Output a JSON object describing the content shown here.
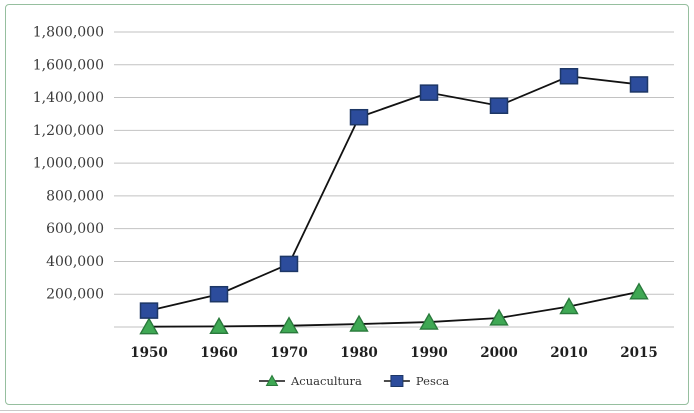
{
  "frame": {
    "border_color": "#96bf9f",
    "background": "#ffffff"
  },
  "text_color": {
    "y_labels": "#3a3a3a",
    "x_labels": "#1f1f1f",
    "legend": "#333333"
  },
  "chart_data": {
    "type": "line",
    "title": "",
    "xlabel": "",
    "ylabel": "",
    "categories": [
      "1950",
      "1960",
      "1970",
      "1980",
      "1990",
      "2000",
      "2010",
      "2015"
    ],
    "series": [
      {
        "name": "Acuacultura",
        "marker": "triangle",
        "fill": "#3fa854",
        "stroke": "#2a7a3c",
        "values": [
          2000,
          4000,
          8000,
          18000,
          30000,
          55000,
          125000,
          215000
        ]
      },
      {
        "name": "Pesca",
        "marker": "square",
        "fill": "#2c4c9c",
        "stroke": "#1d3766",
        "values": [
          100000,
          200000,
          385000,
          1280000,
          1430000,
          1350000,
          1530000,
          1480000
        ]
      }
    ],
    "ylim": [
      0,
      1800000
    ],
    "ytick_step": 200000,
    "y_tick_labels": [
      "200,000",
      "400,000",
      "600,000",
      "800,000",
      "1,000,000",
      "1,200,000",
      "1,400,000",
      "1,600,000",
      "1,800,000"
    ],
    "grid": "horizontal-only",
    "gridline_color": "#c2c2c2",
    "line_color": "#121212",
    "legend_position": "bottom-center",
    "legend": [
      "Acuacultura",
      "Pesca"
    ]
  }
}
